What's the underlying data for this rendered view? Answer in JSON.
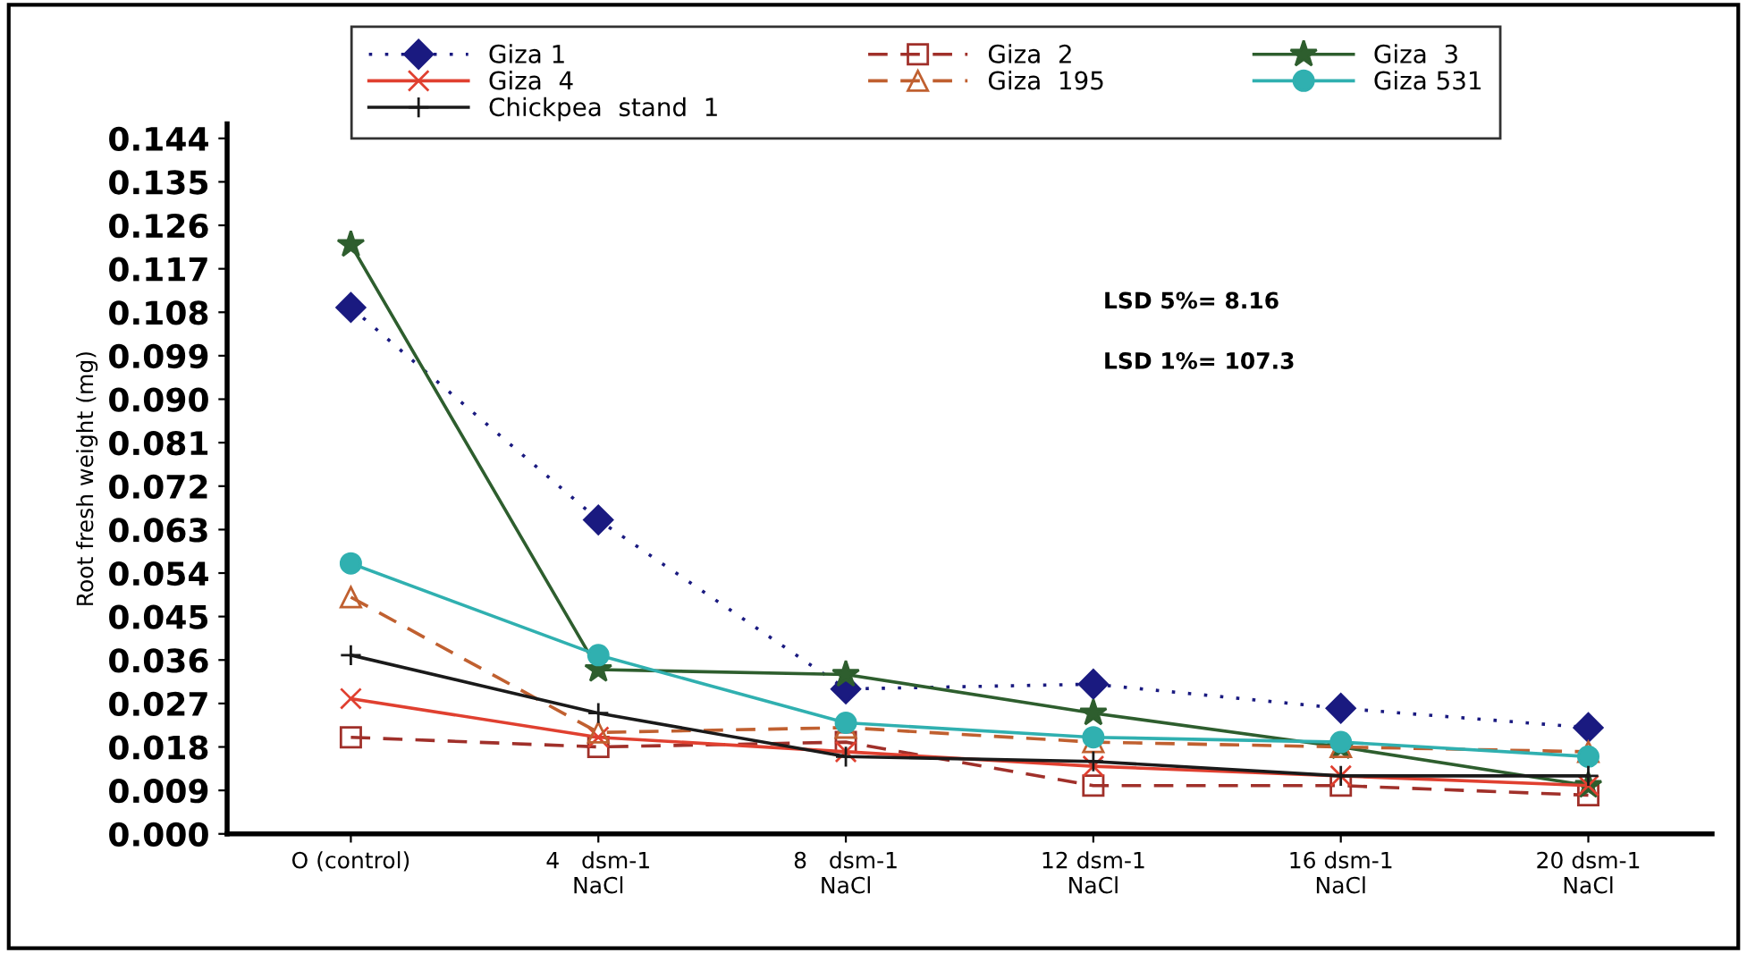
{
  "chart_data": {
    "type": "line",
    "ylabel": "Root fresh weight (mg)",
    "categories": [
      "O (control)",
      "4   dsm-1\nNaCl",
      "8   dsm-1\nNaCl",
      "12 dsm-1\nNaCl",
      "16 dsm-1\nNaCl",
      "20 dsm-1\nNaCl"
    ],
    "series": [
      {
        "name": "Giza 1",
        "color": "#1a1a80",
        "marker": "diamond",
        "line_style": "dotted",
        "values": [
          0.109,
          0.065,
          0.03,
          0.031,
          0.026,
          0.022
        ]
      },
      {
        "name": "Giza  2",
        "color": "#a0302a",
        "marker": "square",
        "line_style": "dashed",
        "values": [
          0.02,
          0.018,
          0.019,
          0.01,
          0.01,
          0.008
        ]
      },
      {
        "name": "Giza  3",
        "color": "#2e5e2e",
        "marker": "star",
        "line_style": "solid",
        "values": [
          0.122,
          0.034,
          0.033,
          0.025,
          0.018,
          0.01
        ]
      },
      {
        "name": "Giza  4",
        "color": "#e04030",
        "marker": "cross",
        "line_style": "solid",
        "values": [
          0.028,
          0.02,
          0.017,
          0.014,
          0.012,
          0.01
        ]
      },
      {
        "name": "Giza  195",
        "color": "#c06030",
        "marker": "triangle",
        "line_style": "dashed",
        "values": [
          0.049,
          0.021,
          0.022,
          0.019,
          0.018,
          0.017
        ]
      },
      {
        "name": "Giza 531",
        "color": "#30b0b0",
        "marker": "circle",
        "line_style": "solid",
        "values": [
          0.056,
          0.037,
          0.023,
          0.02,
          0.019,
          0.016
        ]
      },
      {
        "name": "Chickpea  stand  1",
        "color": "#1a1a1a",
        "marker": "plus",
        "line_style": "solid",
        "values": [
          0.037,
          0.025,
          0.016,
          0.015,
          0.012,
          0.012
        ]
      }
    ],
    "ylim": [
      0,
      0.147
    ],
    "yticks": [
      {
        "value": 0,
        "label": "0.000"
      },
      0.009,
      0.018,
      0.027,
      0.036,
      0.045,
      0.054,
      0.063,
      0.072,
      0.081,
      {
        "value": 0.09,
        "label": "0.090"
      },
      0.099,
      0.108,
      0.117,
      0.126,
      0.135,
      0.144
    ],
    "annotations": [
      "LSD 5%= 8.16",
      "LSD 1%= 107.3"
    ],
    "legend": "top",
    "grid": false
  }
}
